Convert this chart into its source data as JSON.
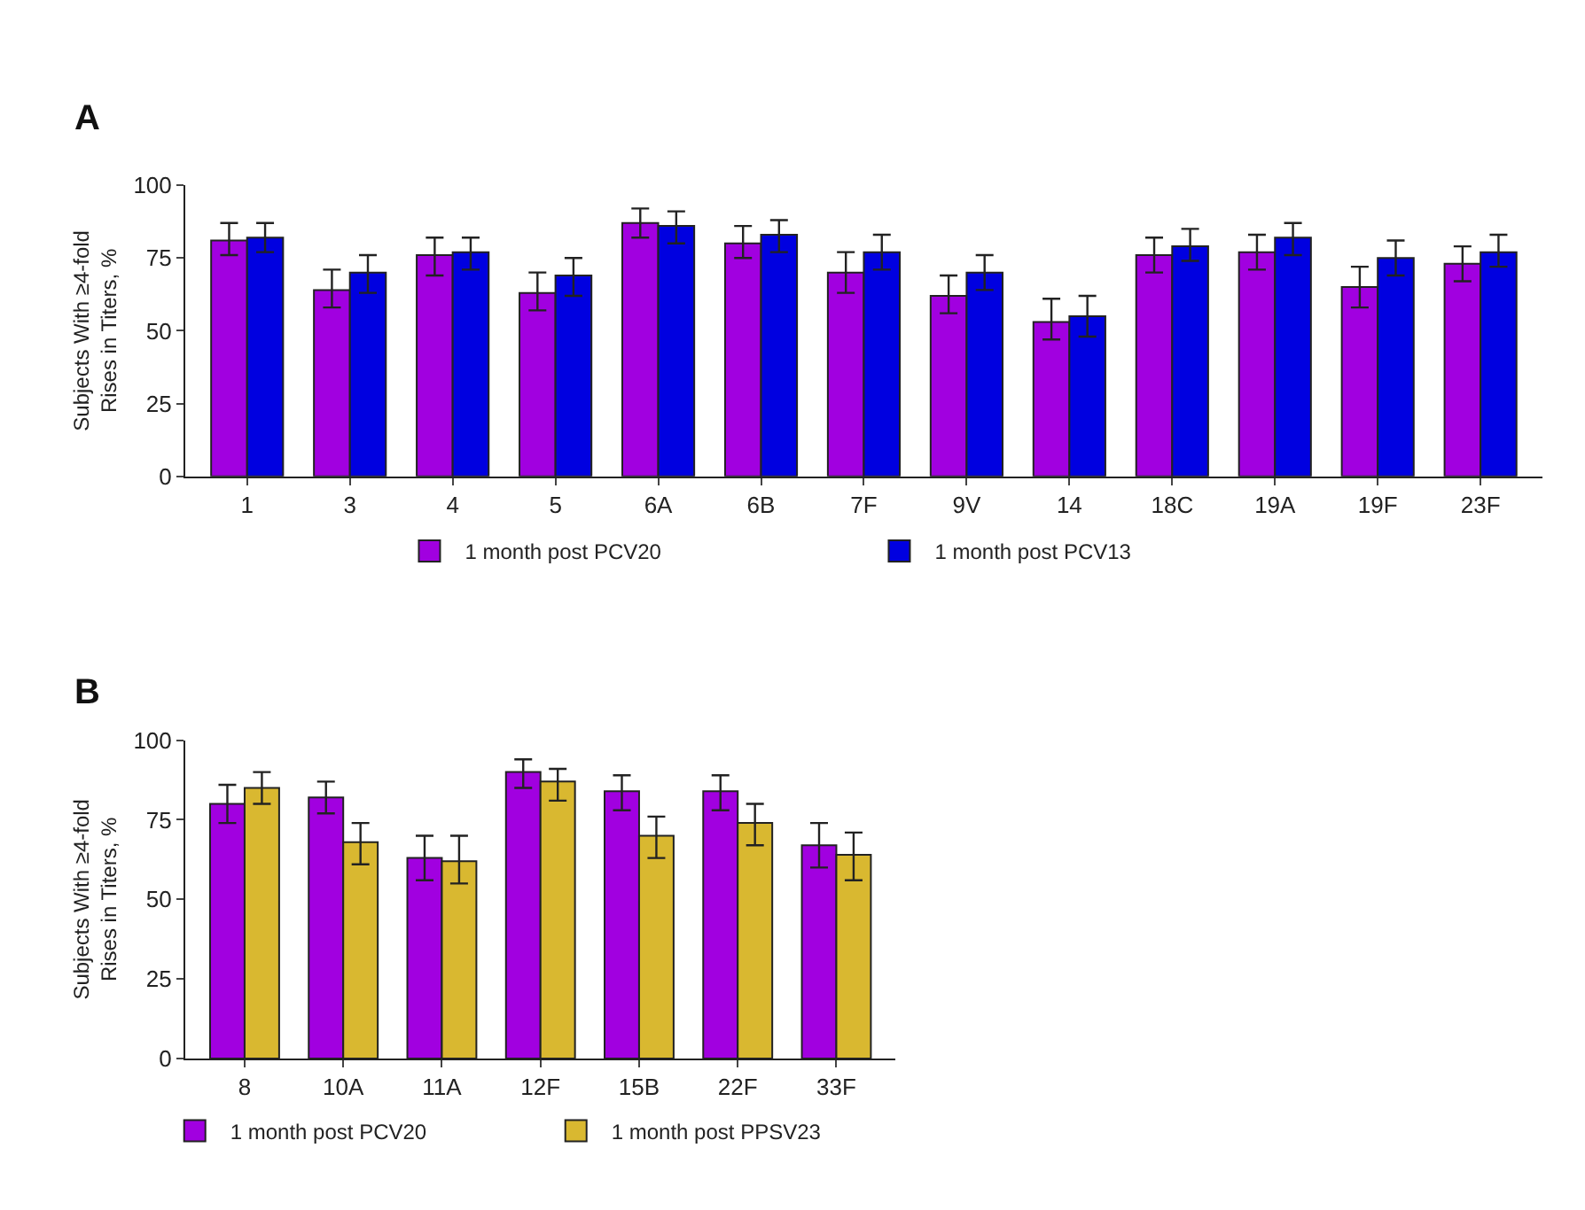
{
  "chart_data": [
    {
      "type": "bar",
      "title": "A",
      "ylabel": "Subjects With ≥4-fold\nRises in Titers, %",
      "categories": [
        "1",
        "3",
        "4",
        "5",
        "6A",
        "6B",
        "7F",
        "9V",
        "14",
        "18C",
        "19A",
        "19F",
        "23F"
      ],
      "ylim": [
        0,
        100
      ],
      "yticks": [
        0,
        25,
        50,
        75,
        100
      ],
      "legend": "bottom",
      "series": [
        {
          "name": "1 month post PCV20",
          "color": "#a100e0",
          "values": [
            81,
            64,
            76,
            63,
            87,
            80,
            70,
            62,
            53,
            76,
            77,
            65,
            73
          ],
          "errors": [
            [
              76,
              87
            ],
            [
              58,
              71
            ],
            [
              69,
              82
            ],
            [
              57,
              70
            ],
            [
              82,
              92
            ],
            [
              75,
              86
            ],
            [
              63,
              77
            ],
            [
              56,
              69
            ],
            [
              47,
              61
            ],
            [
              70,
              82
            ],
            [
              71,
              83
            ],
            [
              58,
              72
            ],
            [
              67,
              79
            ]
          ]
        },
        {
          "name": "1 month post PCV13",
          "color": "#0000e0",
          "values": [
            82,
            70,
            77,
            69,
            86,
            83,
            77,
            70,
            55,
            79,
            82,
            75,
            77
          ],
          "errors": [
            [
              77,
              87
            ],
            [
              63,
              76
            ],
            [
              71,
              82
            ],
            [
              62,
              75
            ],
            [
              80,
              91
            ],
            [
              77,
              88
            ],
            [
              71,
              83
            ],
            [
              64,
              76
            ],
            [
              48,
              62
            ],
            [
              74,
              85
            ],
            [
              76,
              87
            ],
            [
              69,
              81
            ],
            [
              72,
              83
            ]
          ]
        }
      ]
    },
    {
      "type": "bar",
      "title": "B",
      "ylabel": "Subjects With ≥4-fold\nRises in Titers, %",
      "categories": [
        "8",
        "10A",
        "11A",
        "12F",
        "15B",
        "22F",
        "33F"
      ],
      "ylim": [
        0,
        100
      ],
      "yticks": [
        0,
        25,
        50,
        75,
        100
      ],
      "legend": "bottom",
      "series": [
        {
          "name": "1 month post PCV20",
          "color": "#a100e0",
          "values": [
            80,
            82,
            63,
            90,
            84,
            84,
            67
          ],
          "errors": [
            [
              74,
              86
            ],
            [
              77,
              87
            ],
            [
              56,
              70
            ],
            [
              85,
              94
            ],
            [
              78,
              89
            ],
            [
              78,
              89
            ],
            [
              60,
              74
            ]
          ]
        },
        {
          "name": "1 month post PPSV23",
          "color": "#d9b830",
          "values": [
            85,
            68,
            62,
            87,
            70,
            74,
            64
          ],
          "errors": [
            [
              80,
              90
            ],
            [
              61,
              74
            ],
            [
              55,
              70
            ],
            [
              81,
              91
            ],
            [
              63,
              76
            ],
            [
              67,
              80
            ],
            [
              56,
              71
            ]
          ]
        }
      ]
    }
  ]
}
